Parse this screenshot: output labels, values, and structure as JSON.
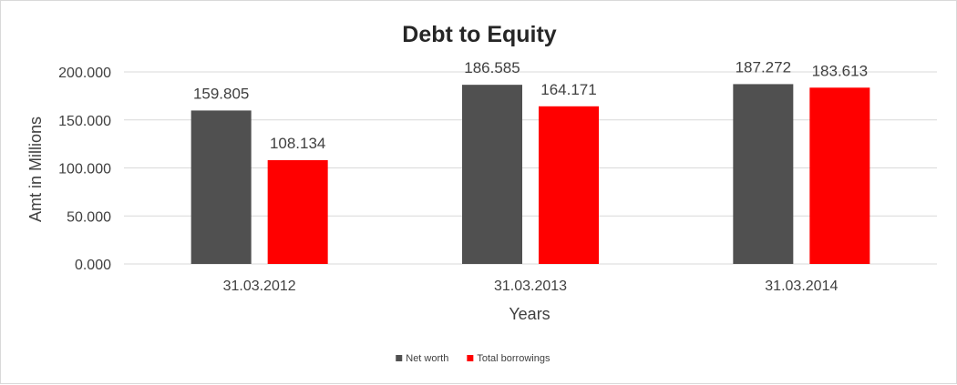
{
  "chart_data": {
    "type": "bar",
    "title": "Debt to Equity",
    "xlabel": "Years",
    "ylabel": "Amt in Millions",
    "categories": [
      "31.03.2012",
      "31.03.2013",
      "31.03.2014"
    ],
    "series": [
      {
        "name": "Net worth",
        "color": "#505050",
        "values": [
          159.805,
          186.585,
          187.272
        ]
      },
      {
        "name": "Total borrowings",
        "color": "#ff0000",
        "values": [
          108.134,
          164.171,
          183.613
        ]
      }
    ],
    "yticks": [
      "0.000",
      "50.000",
      "100.000",
      "150.000",
      "200.000"
    ],
    "ylim": [
      0,
      200
    ],
    "grid": true,
    "legend_position": "bottom"
  }
}
